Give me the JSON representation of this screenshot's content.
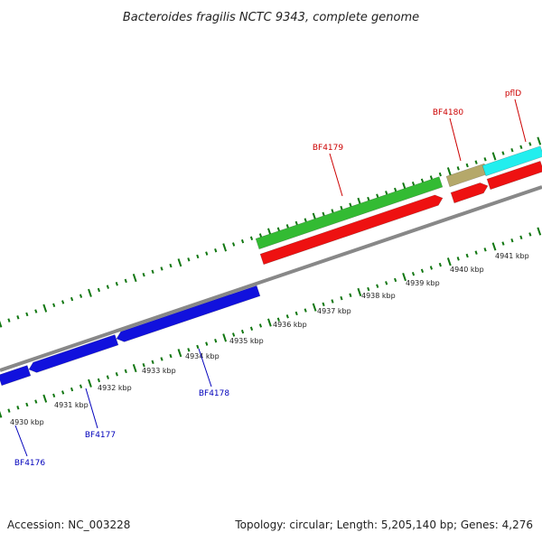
{
  "title": "Bacteroides fragilis NCTC 9343, complete genome",
  "footer": {
    "accession": "Accession: NC_003228",
    "summary": "Topology: circular; Length: 5,205,140 bp; Genes: 4,276"
  },
  "scale_labels": [
    "4930 kbp",
    "4931 kbp",
    "4932 kbp",
    "4933 kbp",
    "4934 kbp",
    "4935 kbp",
    "4936 kbp",
    "4937 kbp",
    "4938 kbp",
    "4939 kbp",
    "4940 kbp",
    "4941 kbp"
  ],
  "colors": {
    "forward_cds": "#ee1111",
    "reverse_cds": "#1111dd",
    "green_feature": "#33bb33",
    "tan_feature": "#b5a86a",
    "cyan_feature": "#22eeee",
    "backbone": "#888888",
    "ticks": "#117711",
    "forward_label": "#cc0000",
    "reverse_label": "#0000bb"
  },
  "gene_labels": {
    "forward": [
      "BF4179",
      "BF4180",
      "pflD"
    ],
    "reverse": [
      "BF4176",
      "BF4177",
      "BF4178"
    ]
  }
}
